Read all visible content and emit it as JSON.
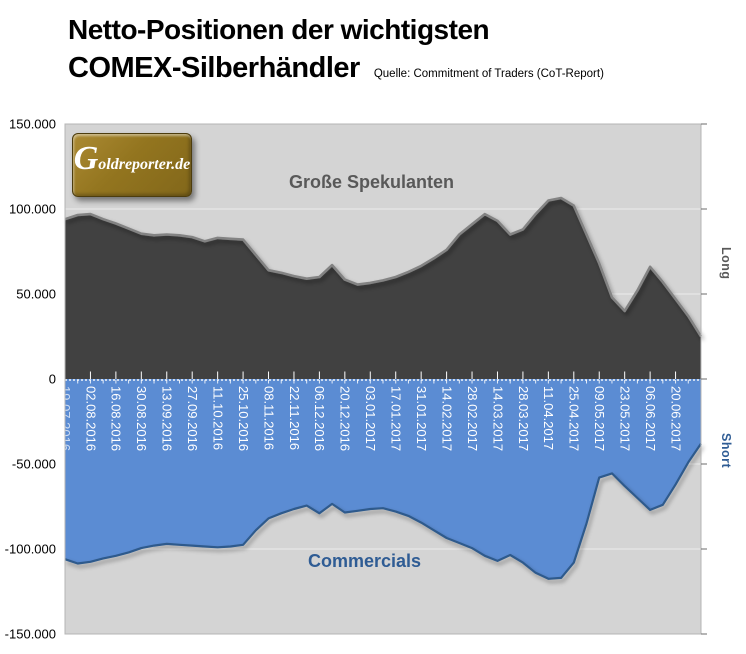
{
  "title": {
    "line1": "Netto-Positionen der wichtigsten",
    "line2": "COMEX-Silberhändler",
    "source": "Quelle: Commitment of Traders (CoT-Report)"
  },
  "logo": {
    "text": "Goldreporter.de"
  },
  "chart_data": {
    "type": "area",
    "title": "Netto-Positionen der wichtigsten COMEX-Silberhändler",
    "source": "Quelle: Commitment of Traders (CoT-Report)",
    "x_labels": [
      "19.07.2016",
      "02.08.2016",
      "16.08.2016",
      "30.08.2016",
      "13.09.2016",
      "27.09.2016",
      "11.10.2016",
      "25.10.2016",
      "08.11.2016",
      "22.11.2016",
      "06.12.2016",
      "20.12.2016",
      "03.01.2017",
      "17.01.2017",
      "31.01.2017",
      "14.02.2017",
      "28.02.2017",
      "14.03.2017",
      "28.03.2017",
      "11.04.2017",
      "25.04.2017",
      "09.05.2017",
      "23.05.2017",
      "06.06.2017",
      "20.06.2017"
    ],
    "points_per_label": 2,
    "y_ticks": [
      "150.000",
      "100.000",
      "50.000",
      "0",
      "-50.000",
      "-100.000",
      "-150.000"
    ],
    "ylim": [
      -150000,
      150000
    ],
    "grid": "horizontal",
    "colors": {
      "plot_background": "#D4D4D4",
      "gridline": "#ECECEC",
      "speculators_fill": "#414141",
      "speculators_edge": "#838383",
      "commercials_fill": "#5B8CD3",
      "commercials_edge": "#2F5A8C",
      "axis_text": "#000000",
      "x_label_text": "#FFFFFF"
    },
    "series": [
      {
        "name": "Große Spekulanten",
        "side_label": "Long",
        "color": "#414141",
        "values": [
          94000,
          96500,
          97000,
          94000,
          91500,
          88500,
          85500,
          84500,
          85000,
          84500,
          83500,
          81000,
          83000,
          82500,
          82000,
          73000,
          64000,
          62500,
          60500,
          59000,
          60000,
          67000,
          58500,
          55500,
          56500,
          58000,
          60000,
          63000,
          66500,
          71000,
          76000,
          85000,
          91000,
          97000,
          93000,
          85000,
          88000,
          97000,
          105000,
          106500,
          102000,
          85000,
          68000,
          48000,
          40000,
          52000,
          66000,
          57000,
          47000,
          37000,
          25000
        ]
      },
      {
        "name": "Commercials",
        "side_label": "Short",
        "color": "#5B8CD3",
        "values": [
          -106000,
          -108500,
          -107500,
          -105500,
          -104000,
          -102000,
          -99500,
          -98000,
          -97000,
          -97500,
          -98000,
          -98500,
          -99000,
          -98500,
          -97500,
          -89000,
          -82000,
          -79000,
          -76500,
          -74500,
          -79000,
          -73500,
          -78500,
          -77500,
          -76500,
          -76000,
          -78000,
          -80500,
          -84500,
          -89000,
          -93500,
          -96500,
          -99500,
          -104000,
          -107000,
          -103500,
          -108000,
          -114000,
          -117500,
          -117000,
          -108000,
          -85000,
          -58000,
          -55500,
          -63000,
          -70000,
          -77000,
          -74000,
          -62000,
          -49000,
          -38000
        ]
      }
    ]
  }
}
